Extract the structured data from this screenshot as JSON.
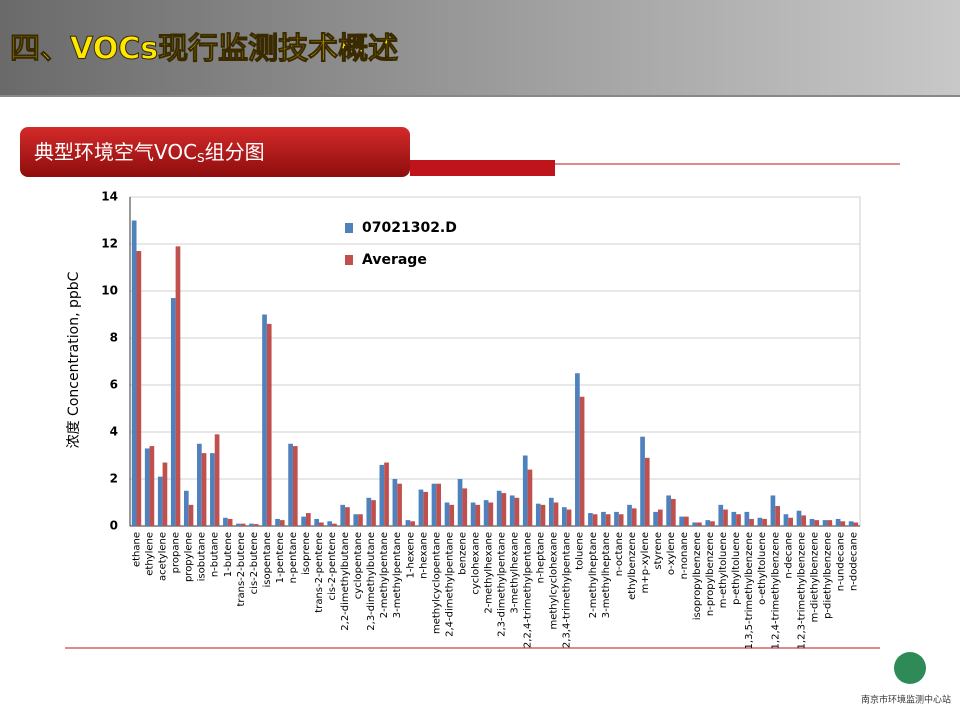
{
  "slide": {
    "title": "四、VOCs现行监测技术概述",
    "banner": {
      "parts": [
        "典型环境空气VOC",
        "S",
        "组分图"
      ]
    },
    "logo": "南京市环境监测中心站"
  },
  "chart_data": {
    "type": "bar",
    "ylabel": "浓度 Concentration, ppbC",
    "categories": [
      "ethane",
      "ethylene",
      "acetylene",
      "propane",
      "propylene",
      "isobutane",
      "n-butane",
      "1-butene",
      "trans-2-butene",
      "cis-2-butene",
      "isopentane",
      "1-pentene",
      "n-pentane",
      "isoprene",
      "trans-2-pentene",
      "cis-2-pentene",
      "2,2-dimethylbutane",
      "cyclopentane",
      "2,3-dimethylbutane",
      "2-methylpentane",
      "3-methylpentane",
      "1-hexene",
      "n-hexane",
      "methylcyclopentane",
      "2,4-dimethylpentane",
      "benzene",
      "cyclohexane",
      "2-methylhexane",
      "2,3-dimethylpentane",
      "3-methylhexane",
      "2,2,4-trimethylpentane",
      "n-heptane",
      "methylcyclohexane",
      "2,3,4-trimethylpentane",
      "toluene",
      "2-methylheptane",
      "3-methylheptane",
      "n-octane",
      "ethylbenzene",
      "m+p-xylene",
      "styrene",
      "o-xylene",
      "n-nonane",
      "isopropylbenzene",
      "n-propylbenzene",
      "m-ethyltoluene",
      "p-ethyltoluene",
      "1,3,5-trimethylbenzene",
      "o-ethyltoluene",
      "1,2,4-trimethylbenzene",
      "n-decane",
      "1,2,3-trimethylbenzene",
      "m-diethylbenzene",
      "p-diethylbenzene",
      "n-undecane",
      "n-dodecane"
    ],
    "series": [
      {
        "name": "07021302.D",
        "color": "#4f81bd",
        "values": [
          13.0,
          3.3,
          2.1,
          9.7,
          1.5,
          3.5,
          3.1,
          0.35,
          0.1,
          0.1,
          9.0,
          0.3,
          3.5,
          0.4,
          0.3,
          0.2,
          0.9,
          0.5,
          1.2,
          2.6,
          2.0,
          0.25,
          1.55,
          1.8,
          1.0,
          2.0,
          1.0,
          1.1,
          1.5,
          1.3,
          3.0,
          0.95,
          1.2,
          0.8,
          6.5,
          0.55,
          0.6,
          0.6,
          0.9,
          3.8,
          0.6,
          1.3,
          0.4,
          0.15,
          0.25,
          0.9,
          0.6,
          0.6,
          0.35,
          1.3,
          0.5,
          0.65,
          0.3,
          0.25,
          0.3,
          0.2
        ]
      },
      {
        "name": "Average",
        "color": "#c0504d",
        "values": [
          11.7,
          3.4,
          2.7,
          11.9,
          0.9,
          3.1,
          3.9,
          0.3,
          0.1,
          0.08,
          8.6,
          0.25,
          3.4,
          0.55,
          0.15,
          0.1,
          0.8,
          0.5,
          1.1,
          2.7,
          1.8,
          0.2,
          1.45,
          1.8,
          0.9,
          1.6,
          0.9,
          1.0,
          1.4,
          1.2,
          2.4,
          0.9,
          1.0,
          0.7,
          5.5,
          0.5,
          0.5,
          0.5,
          0.75,
          2.9,
          0.7,
          1.15,
          0.4,
          0.15,
          0.2,
          0.7,
          0.5,
          0.3,
          0.3,
          0.85,
          0.35,
          0.45,
          0.25,
          0.25,
          0.2,
          0.15
        ]
      }
    ],
    "ylim": [
      0,
      14
    ],
    "yticks": [
      0,
      2,
      4,
      6,
      8,
      10,
      12,
      14
    ],
    "grid": true
  }
}
